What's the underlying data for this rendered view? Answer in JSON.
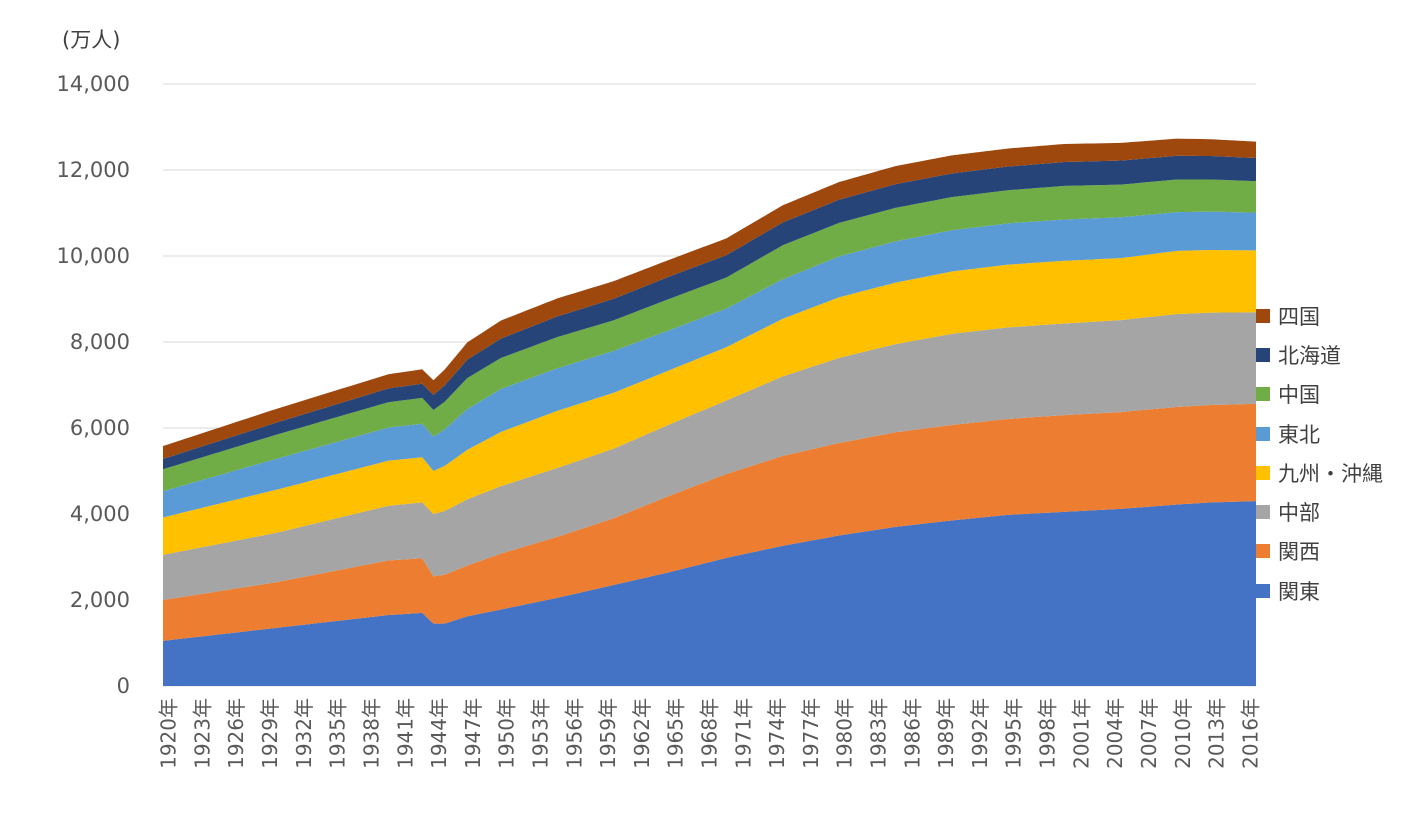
{
  "chart_data": {
    "type": "area",
    "stacked": true,
    "unit_label": "(万人)",
    "ylim": [
      0,
      14000
    ],
    "y_ticks": [
      "0",
      "2,000",
      "4,000",
      "6,000",
      "8,000",
      "10,000",
      "12,000",
      "14,000"
    ],
    "y_tick_values": [
      0,
      2000,
      4000,
      6000,
      8000,
      10000,
      12000,
      14000
    ],
    "x_tick_labels": [
      "1920年",
      "1923年",
      "1926年",
      "1929年",
      "1932年",
      "1935年",
      "1938年",
      "1941年",
      "1944年",
      "1947年",
      "1950年",
      "1953年",
      "1956年",
      "1959年",
      "1962年",
      "1965年",
      "1968年",
      "1971年",
      "1974年",
      "1977年",
      "1980年",
      "1983年",
      "1986年",
      "1989年",
      "1992年",
      "1995年",
      "1998年",
      "2001年",
      "2004年",
      "2007年",
      "2010年",
      "2013年",
      "2016年"
    ],
    "x_start": 1920,
    "x_end": 2017,
    "legend_position": "right",
    "series": [
      {
        "name": "関東",
        "color": "#4472C4",
        "x": [
          1920,
          1925,
          1930,
          1935,
          1940,
          1943,
          1944,
          1945,
          1947,
          1950,
          1955,
          1960,
          1965,
          1970,
          1975,
          1980,
          1985,
          1990,
          1995,
          2000,
          2005,
          2010,
          2013,
          2017
        ],
        "values": [
          1050,
          1200,
          1350,
          1500,
          1650,
          1700,
          1450,
          1450,
          1620,
          1780,
          2050,
          2350,
          2650,
          2980,
          3260,
          3500,
          3700,
          3850,
          3980,
          4050,
          4120,
          4220,
          4270,
          4300
        ]
      },
      {
        "name": "関西",
        "color": "#ED7D31",
        "x": [
          1920,
          1930,
          1940,
          1943,
          1944,
          1945,
          1947,
          1950,
          1955,
          1960,
          1965,
          1970,
          1975,
          1980,
          1985,
          1990,
          1995,
          2000,
          2005,
          2010,
          2017
        ],
        "values": [
          950,
          1060,
          1270,
          1270,
          1100,
          1140,
          1180,
          1300,
          1420,
          1550,
          1780,
          1950,
          2090,
          2150,
          2200,
          2220,
          2230,
          2250,
          2250,
          2270,
          2260
        ]
      },
      {
        "name": "中部",
        "color": "#A5A5A5",
        "x": [
          1920,
          1930,
          1940,
          1943,
          1944,
          1945,
          1947,
          1950,
          1955,
          1960,
          1965,
          1970,
          1975,
          1980,
          1985,
          1990,
          1995,
          2000,
          2005,
          2010,
          2017
        ],
        "values": [
          1050,
          1150,
          1270,
          1300,
          1450,
          1480,
          1540,
          1570,
          1600,
          1620,
          1660,
          1710,
          1850,
          1980,
          2050,
          2120,
          2130,
          2130,
          2140,
          2160,
          2130
        ]
      },
      {
        "name": "九州・沖縄",
        "color": "#FFC000",
        "x": [
          1920,
          1930,
          1940,
          1943,
          1944,
          1945,
          1947,
          1950,
          1955,
          1960,
          1965,
          1970,
          1975,
          1980,
          1985,
          1990,
          1995,
          2000,
          2005,
          2010,
          2017
        ],
        "values": [
          870,
          1000,
          1050,
          1050,
          1000,
          1050,
          1150,
          1260,
          1330,
          1300,
          1260,
          1240,
          1340,
          1410,
          1430,
          1450,
          1460,
          1460,
          1440,
          1470,
          1440
        ]
      },
      {
        "name": "東北",
        "color": "#5B9BD5",
        "x": [
          1920,
          1930,
          1940,
          1943,
          1944,
          1945,
          1947,
          1950,
          1955,
          1960,
          1965,
          1970,
          1975,
          1980,
          1985,
          1990,
          1995,
          2000,
          2005,
          2010,
          2017
        ],
        "values": [
          610,
          720,
          770,
          780,
          800,
          850,
          950,
          1000,
          990,
          975,
          930,
          900,
          920,
          950,
          960,
          960,
          960,
          960,
          950,
          900,
          880
        ]
      },
      {
        "name": "中国",
        "color": "#70AD47",
        "x": [
          1920,
          1930,
          1940,
          1943,
          1944,
          1945,
          1947,
          1950,
          1955,
          1960,
          1965,
          1970,
          1975,
          1980,
          1985,
          1990,
          1995,
          2000,
          2005,
          2010,
          2017
        ],
        "values": [
          510,
          560,
          590,
          600,
          620,
          640,
          720,
          720,
          725,
          710,
          730,
          720,
          790,
          780,
          780,
          770,
          770,
          780,
          760,
          760,
          730
        ]
      },
      {
        "name": "北海道",
        "color": "#264478",
        "x": [
          1920,
          1930,
          1940,
          1943,
          1944,
          1945,
          1947,
          1950,
          1955,
          1960,
          1965,
          1970,
          1975,
          1980,
          1985,
          1990,
          1995,
          2000,
          2005,
          2010,
          2017
        ],
        "values": [
          240,
          280,
          320,
          330,
          350,
          380,
          430,
          450,
          480,
          500,
          520,
          520,
          530,
          540,
          550,
          550,
          550,
          555,
          560,
          550,
          540
        ]
      },
      {
        "name": "四国",
        "color": "#9E480E",
        "x": [
          1920,
          1930,
          1940,
          1943,
          1944,
          1945,
          1947,
          1950,
          1955,
          1960,
          1965,
          1970,
          1975,
          1980,
          1985,
          1990,
          1995,
          2000,
          2005,
          2010,
          2017
        ],
        "values": [
          300,
          320,
          330,
          335,
          340,
          370,
          400,
          420,
          420,
          410,
          390,
          390,
          400,
          410,
          420,
          420,
          420,
          420,
          410,
          400,
          380
        ]
      }
    ]
  }
}
